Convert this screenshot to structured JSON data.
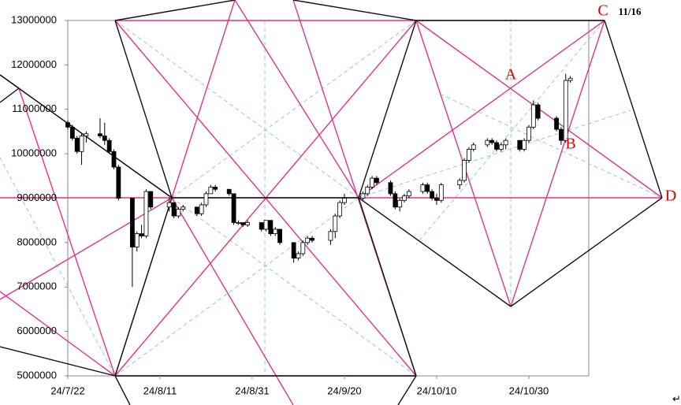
{
  "chart_data": {
    "type": "candlestick",
    "x": [
      "2024-07-22",
      "2024-07-23",
      "2024-07-24",
      "2024-07-25",
      "2024-07-26",
      "2024-07-29",
      "2024-07-30",
      "2024-07-31",
      "2024-08-01",
      "2024-08-02",
      "2024-08-05",
      "2024-08-06",
      "2024-08-07",
      "2024-08-08",
      "2024-08-09",
      "2024-08-13",
      "2024-08-14",
      "2024-08-15",
      "2024-08-16",
      "2024-08-19",
      "2024-08-20",
      "2024-08-21",
      "2024-08-22",
      "2024-08-23",
      "2024-08-26",
      "2024-08-27",
      "2024-08-28",
      "2024-08-29",
      "2024-08-30",
      "2024-09-02",
      "2024-09-03",
      "2024-09-04",
      "2024-09-05",
      "2024-09-06",
      "2024-09-09",
      "2024-09-10",
      "2024-09-11",
      "2024-09-12",
      "2024-09-13",
      "2024-09-17",
      "2024-09-18",
      "2024-09-19",
      "2024-09-20",
      "2024-09-24",
      "2024-09-25",
      "2024-09-26",
      "2024-09-27",
      "2024-09-30",
      "2024-10-01",
      "2024-10-02",
      "2024-10-03",
      "2024-10-04",
      "2024-10-07",
      "2024-10-08",
      "2024-10-09",
      "2024-10-10",
      "2024-10-11",
      "2024-10-15",
      "2024-10-16",
      "2024-10-17",
      "2024-10-18",
      "2024-10-21",
      "2024-10-22",
      "2024-10-23",
      "2024-10-24",
      "2024-10-25",
      "2024-10-28",
      "2024-10-29",
      "2024-10-30",
      "2024-10-31",
      "2024-11-01",
      "2024-11-05",
      "2024-11-06",
      "2024-11-07",
      "2024-11-08"
    ],
    "ohlc": [
      [
        10700000,
        10750000,
        10550000,
        10600000
      ],
      [
        10600000,
        10650000,
        10300000,
        10350000
      ],
      [
        10350000,
        10400000,
        10000000,
        10050000
      ],
      [
        10050000,
        10450000,
        9750000,
        10400000
      ],
      [
        10400000,
        10500000,
        10250000,
        10450000
      ],
      [
        10450000,
        10800000,
        10350000,
        10400000
      ],
      [
        10400000,
        10700000,
        10200000,
        10300000
      ],
      [
        10300000,
        10350000,
        10000000,
        10050000
      ],
      [
        10050000,
        10100000,
        9650000,
        9700000
      ],
      [
        9700000,
        9750000,
        8950000,
        9000000
      ],
      [
        9000000,
        9000000,
        7000000,
        7900000
      ],
      [
        7900000,
        8250000,
        7800000,
        8200000
      ],
      [
        8200000,
        8400000,
        8100000,
        8150000
      ],
      [
        8150000,
        9200000,
        8100000,
        9150000
      ],
      [
        9150000,
        9150000,
        8750000,
        8800000
      ],
      [
        8800000,
        9000000,
        8700000,
        8900000
      ],
      [
        8900000,
        8900000,
        8550000,
        8600000
      ],
      [
        8600000,
        8800000,
        8550000,
        8750000
      ],
      [
        8750000,
        8850000,
        8700000,
        8800000
      ],
      [
        8800000,
        8800000,
        8600000,
        8650000
      ],
      [
        8650000,
        8900000,
        8600000,
        8850000
      ],
      [
        8850000,
        9150000,
        8800000,
        9100000
      ],
      [
        9100000,
        9300000,
        9100000,
        9250000
      ],
      [
        9250000,
        9300000,
        9150000,
        9200000
      ],
      [
        9200000,
        9200000,
        9050000,
        9100000
      ],
      [
        9100000,
        9100000,
        8400000,
        8450000
      ],
      [
        8450000,
        8500000,
        8400000,
        8450000
      ],
      [
        8450000,
        8450000,
        8350000,
        8400000
      ],
      [
        8400000,
        8500000,
        8350000,
        8450000
      ],
      [
        8450000,
        8450000,
        8250000,
        8300000
      ],
      [
        8300000,
        8500000,
        8250000,
        8500000
      ],
      [
        8500000,
        8500000,
        8150000,
        8200000
      ],
      [
        8200000,
        8350000,
        8150000,
        8300000
      ],
      [
        8300000,
        8300000,
        7950000,
        8000000
      ],
      [
        8000000,
        8000000,
        7550000,
        7650000
      ],
      [
        7650000,
        7800000,
        7600000,
        7750000
      ],
      [
        7750000,
        8050000,
        7700000,
        8000000
      ],
      [
        8000000,
        8150000,
        7950000,
        8100000
      ],
      [
        8100000,
        8150000,
        8000000,
        8050000
      ],
      [
        8050000,
        8300000,
        7950000,
        8250000
      ],
      [
        8250000,
        8650000,
        8100000,
        8600000
      ],
      [
        8600000,
        8950000,
        8550000,
        8900000
      ],
      [
        8900000,
        9100000,
        8850000,
        9000000
      ],
      [
        9000000,
        9150000,
        8950000,
        9100000
      ],
      [
        9100000,
        9300000,
        9050000,
        9250000
      ],
      [
        9250000,
        9500000,
        9200000,
        9450000
      ],
      [
        9450000,
        9500000,
        9300000,
        9350000
      ],
      [
        9350000,
        9400000,
        9050000,
        9100000
      ],
      [
        9100000,
        9150000,
        8750000,
        8800000
      ],
      [
        8800000,
        9000000,
        8700000,
        8950000
      ],
      [
        8950000,
        9100000,
        8900000,
        9050000
      ],
      [
        9050000,
        9200000,
        9000000,
        9150000
      ],
      [
        9150000,
        9350000,
        9100000,
        9300000
      ],
      [
        9300000,
        9350000,
        9100000,
        9150000
      ],
      [
        9150000,
        9200000,
        8950000,
        9000000
      ],
      [
        9000000,
        9100000,
        8850000,
        8950000
      ],
      [
        8950000,
        9350000,
        8900000,
        9300000
      ],
      [
        9300000,
        9450000,
        9200000,
        9400000
      ],
      [
        9400000,
        9900000,
        9350000,
        9850000
      ],
      [
        9850000,
        10150000,
        9800000,
        10100000
      ],
      [
        10100000,
        10250000,
        10050000,
        10200000
      ],
      [
        10200000,
        10350000,
        10150000,
        10300000
      ],
      [
        10300000,
        10350000,
        10200000,
        10250000
      ],
      [
        10250000,
        10300000,
        10050000,
        10100000
      ],
      [
        10100000,
        10250000,
        10050000,
        10200000
      ],
      [
        10200000,
        10350000,
        10100000,
        10300000
      ],
      [
        10300000,
        10300000,
        10050000,
        10100000
      ],
      [
        10100000,
        10350000,
        10050000,
        10300000
      ],
      [
        10300000,
        10650000,
        10250000,
        10600000
      ],
      [
        10600000,
        11200000,
        10550000,
        11100000
      ],
      [
        11100000,
        11150000,
        10750000,
        10800000
      ],
      [
        10800000,
        10850000,
        10500000,
        10550000
      ],
      [
        10550000,
        10600000,
        10200000,
        10300000
      ],
      [
        10300000,
        11800000,
        10250000,
        11650000
      ],
      [
        11650000,
        11750000,
        11600000,
        11700000
      ]
    ],
    "xlim": [
      "2024-07-22",
      "2024-11-12"
    ],
    "xticks": [
      {
        "value": "2024-07-22",
        "label": "24/7/22"
      },
      {
        "value": "2024-08-11",
        "label": "24/8/11"
      },
      {
        "value": "2024-08-31",
        "label": "24/8/31"
      },
      {
        "value": "2024-09-20",
        "label": "24/9/20"
      },
      {
        "value": "2024-10-10",
        "label": "24/10/10"
      },
      {
        "value": "2024-10-30",
        "label": "24/10/30"
      }
    ],
    "ylim": [
      5000000,
      13000000
    ],
    "yticks": [
      5000000,
      6000000,
      7000000,
      8000000,
      9000000,
      10000000,
      11000000,
      12000000,
      13000000
    ],
    "up_color": "#ffffff",
    "down_color": "#000000",
    "annotations": [
      "A",
      "B",
      "C",
      "D",
      "11/16"
    ],
    "footer_mark": "↵"
  }
}
